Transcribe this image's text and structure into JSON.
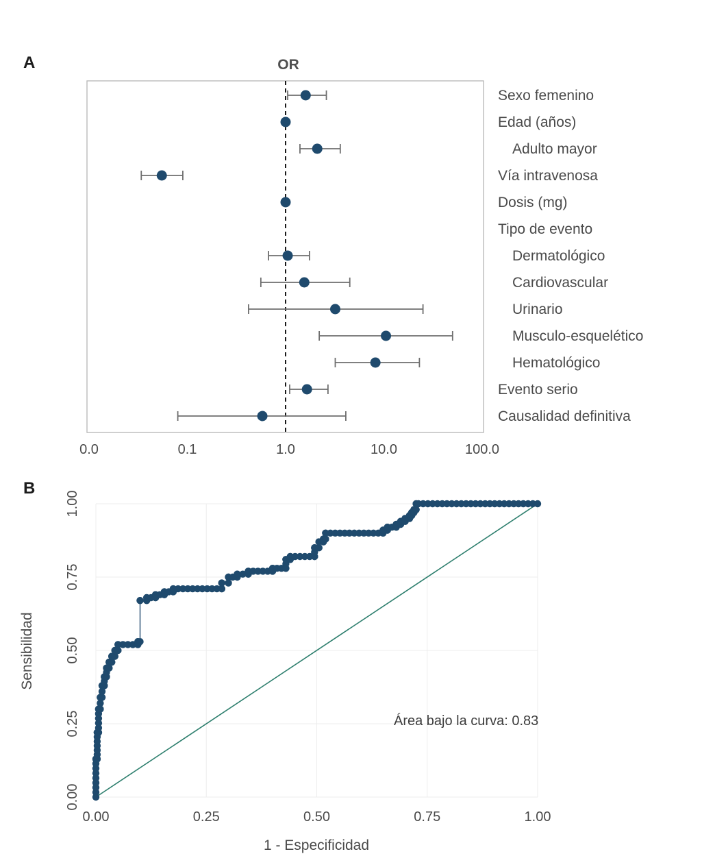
{
  "colors": {
    "point": "#1f4a6d",
    "ci": "#6e6e6e",
    "reference": "#1a1a1a",
    "frame": "#b5b5b5",
    "roc": "#1f4a6d",
    "diagonal": "#2e7f6e",
    "grid": "#ededed"
  },
  "chart_data": [
    {
      "type": "forest",
      "panel_label": "A",
      "title": "OR",
      "x_scale": "log",
      "x_ticks": [
        "0.0",
        "0.1",
        "1.0",
        "10.0",
        "100.0"
      ],
      "x_tick_values": [
        0.01,
        0.1,
        1,
        10,
        100
      ],
      "reference_line": 1.0,
      "rows": [
        {
          "label": "Sexo femenino",
          "indent": false,
          "or": 1.6,
          "lo": 1.05,
          "hi": 2.6
        },
        {
          "label": "Edad (años)",
          "indent": false,
          "or": 1.0,
          "lo": 0.97,
          "hi": 1.04
        },
        {
          "label": "Adulto mayor",
          "indent": true,
          "or": 2.1,
          "lo": 1.4,
          "hi": 3.6
        },
        {
          "label": "Vía intravenosa",
          "indent": false,
          "or": 0.055,
          "lo": 0.034,
          "hi": 0.09
        },
        {
          "label": "Dosis (mg)",
          "indent": false,
          "or": 1.0,
          "lo": 0.99,
          "hi": 1.01
        },
        {
          "label": "Tipo de evento",
          "indent": false,
          "or": null,
          "lo": null,
          "hi": null
        },
        {
          "label": "Dermatológico",
          "indent": true,
          "or": 1.05,
          "lo": 0.67,
          "hi": 1.75
        },
        {
          "label": "Cardiovascular",
          "indent": true,
          "or": 1.55,
          "lo": 0.56,
          "hi": 4.5
        },
        {
          "label": "Urinario",
          "indent": true,
          "or": 3.2,
          "lo": 0.42,
          "hi": 25
        },
        {
          "label": "Musculo-esquelético",
          "indent": true,
          "or": 10.5,
          "lo": 2.2,
          "hi": 50
        },
        {
          "label": "Hematológico",
          "indent": true,
          "or": 8.2,
          "lo": 3.2,
          "hi": 23
        },
        {
          "label": "Evento serio",
          "indent": false,
          "or": 1.65,
          "lo": 1.1,
          "hi": 2.7
        },
        {
          "label": "Causalidad definitiva",
          "indent": false,
          "or": 0.58,
          "lo": 0.08,
          "hi": 4.1
        }
      ]
    },
    {
      "type": "scatter",
      "panel_label": "B",
      "xlabel": "1 - Especificidad",
      "ylabel": "Sensibilidad",
      "xlim": [
        0,
        1
      ],
      "ylim": [
        0,
        1
      ],
      "x_ticks": [
        "0.00",
        "0.25",
        "0.50",
        "0.75",
        "1.00"
      ],
      "y_ticks": [
        "0.00",
        "0.25",
        "0.50",
        "0.75",
        "1.00"
      ],
      "annotation": "Área bajo la curva: 0.83",
      "auc": 0.83,
      "diagonal_reference": true,
      "roc_steps": [
        [
          0,
          0
        ],
        [
          0,
          0.13
        ],
        [
          0.003,
          0.13
        ],
        [
          0.003,
          0.22
        ],
        [
          0.006,
          0.22
        ],
        [
          0.006,
          0.3
        ],
        [
          0.01,
          0.3
        ],
        [
          0.01,
          0.34
        ],
        [
          0.014,
          0.34
        ],
        [
          0.014,
          0.38
        ],
        [
          0.019,
          0.38
        ],
        [
          0.019,
          0.41
        ],
        [
          0.024,
          0.41
        ],
        [
          0.024,
          0.44
        ],
        [
          0.03,
          0.44
        ],
        [
          0.03,
          0.46
        ],
        [
          0.036,
          0.46
        ],
        [
          0.036,
          0.48
        ],
        [
          0.043,
          0.48
        ],
        [
          0.043,
          0.5
        ],
        [
          0.05,
          0.5
        ],
        [
          0.05,
          0.52
        ],
        [
          0.095,
          0.52
        ],
        [
          0.095,
          0.53
        ],
        [
          0.1,
          0.53
        ],
        [
          0.1,
          0.67
        ],
        [
          0.115,
          0.67
        ],
        [
          0.115,
          0.68
        ],
        [
          0.135,
          0.68
        ],
        [
          0.135,
          0.69
        ],
        [
          0.155,
          0.69
        ],
        [
          0.155,
          0.7
        ],
        [
          0.175,
          0.7
        ],
        [
          0.175,
          0.71
        ],
        [
          0.285,
          0.71
        ],
        [
          0.285,
          0.73
        ],
        [
          0.3,
          0.73
        ],
        [
          0.3,
          0.75
        ],
        [
          0.32,
          0.75
        ],
        [
          0.32,
          0.76
        ],
        [
          0.345,
          0.76
        ],
        [
          0.345,
          0.77
        ],
        [
          0.4,
          0.77
        ],
        [
          0.4,
          0.78
        ],
        [
          0.43,
          0.78
        ],
        [
          0.43,
          0.81
        ],
        [
          0.44,
          0.81
        ],
        [
          0.44,
          0.82
        ],
        [
          0.495,
          0.82
        ],
        [
          0.495,
          0.85
        ],
        [
          0.505,
          0.85
        ],
        [
          0.505,
          0.87
        ],
        [
          0.515,
          0.87
        ],
        [
          0.515,
          0.88
        ],
        [
          0.52,
          0.88
        ],
        [
          0.52,
          0.9
        ],
        [
          0.65,
          0.9
        ],
        [
          0.65,
          0.91
        ],
        [
          0.66,
          0.91
        ],
        [
          0.66,
          0.92
        ],
        [
          0.68,
          0.92
        ],
        [
          0.68,
          0.93
        ],
        [
          0.69,
          0.93
        ],
        [
          0.69,
          0.94
        ],
        [
          0.7,
          0.94
        ],
        [
          0.7,
          0.95
        ],
        [
          0.71,
          0.95
        ],
        [
          0.71,
          0.96
        ],
        [
          0.715,
          0.96
        ],
        [
          0.715,
          0.97
        ],
        [
          0.72,
          0.97
        ],
        [
          0.72,
          0.98
        ],
        [
          0.725,
          0.98
        ],
        [
          0.725,
          1
        ],
        [
          0.73,
          1
        ],
        [
          1,
          1
        ]
      ]
    }
  ]
}
